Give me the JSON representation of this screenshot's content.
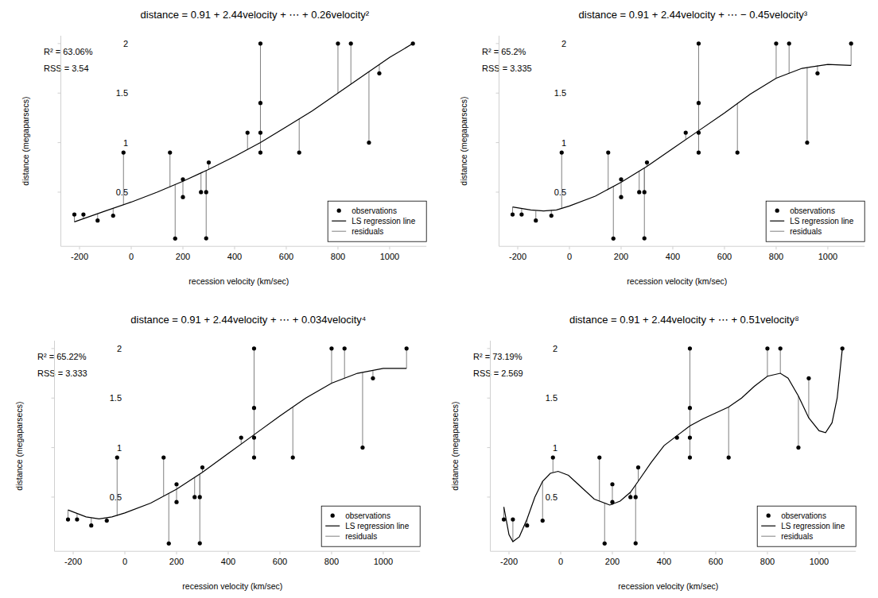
{
  "chart_data": [
    {
      "type": "scatter",
      "title": "distance = 0.91 + 2.44velocity + ⋯ + 0.26velocity²",
      "annotations": [
        "R² = 63.06%",
        "RSS = 3.54"
      ],
      "x_label": "recession velocity (km/sec)",
      "y_label": "distance (megaparsecs)",
      "xlim": [
        -272.4,
        1142.4
      ],
      "ylim": [
        -0.047,
        2.079
      ],
      "xticks": [
        -200,
        0,
        200,
        400,
        600,
        800,
        1000
      ],
      "yticks": [
        0.5,
        1,
        1.5,
        2
      ],
      "legend": "bottom-right",
      "series": [
        {
          "name": "observations",
          "type": "scatter",
          "marker": "circle",
          "color": "#000000",
          "x": [
            170,
            290,
            -130,
            -70,
            -185,
            -220,
            200,
            290,
            270,
            200,
            300,
            -30,
            650,
            150,
            500,
            920,
            450,
            500,
            500,
            960,
            500,
            850,
            800,
            1090
          ],
          "values": [
            0.032,
            0.034,
            0.214,
            0.263,
            0.275,
            0.275,
            0.45,
            0.5,
            0.5,
            0.63,
            0.8,
            0.9,
            0.9,
            0.9,
            0.9,
            1.0,
            1.1,
            1.1,
            1.4,
            1.7,
            2.0,
            2.0,
            2.0,
            2.0
          ]
        },
        {
          "name": "LS regression line",
          "type": "line",
          "color": "#000000",
          "x": [
            -220,
            -100,
            0,
            100,
            200,
            300,
            400,
            500,
            600,
            700,
            800,
            900,
            1000,
            1090
          ],
          "values": [
            0.2,
            0.31,
            0.4,
            0.5,
            0.61,
            0.73,
            0.86,
            1.0,
            1.16,
            1.32,
            1.5,
            1.68,
            1.86,
            2.0
          ]
        },
        {
          "name": "residuals",
          "type": "residual",
          "color": "#808080",
          "x": [
            170,
            290,
            -130,
            -70,
            -185,
            -220,
            200,
            290,
            270,
            200,
            300,
            -30,
            650,
            150,
            500,
            920,
            450,
            500,
            500,
            960,
            500,
            850,
            800,
            1090
          ],
          "values": [
            0.58,
            0.72,
            0.28,
            0.34,
            0.23,
            0.2,
            0.61,
            0.72,
            0.69,
            0.61,
            0.73,
            0.37,
            1.24,
            0.55,
            1.0,
            1.72,
            0.93,
            1.0,
            1.0,
            1.79,
            1.0,
            1.59,
            1.5,
            2.0
          ]
        }
      ]
    },
    {
      "type": "scatter",
      "title": "distance = 0.91 + 2.44velocity + ⋯ − 0.45velocity³",
      "annotations": [
        "R² = 65.2%",
        "RSS = 3.335"
      ],
      "x_label": "recession velocity (km/sec)",
      "y_label": "distance (megaparsecs)",
      "xlim": [
        -272.4,
        1142.4
      ],
      "ylim": [
        -0.047,
        2.079
      ],
      "xticks": [
        -200,
        0,
        200,
        400,
        600,
        800,
        1000
      ],
      "yticks": [
        0.5,
        1,
        1.5,
        2
      ],
      "legend": "bottom-right",
      "series": [
        {
          "name": "observations",
          "type": "scatter",
          "marker": "circle",
          "color": "#000000",
          "x": [
            170,
            290,
            -130,
            -70,
            -185,
            -220,
            200,
            290,
            270,
            200,
            300,
            -30,
            650,
            150,
            500,
            920,
            450,
            500,
            500,
            960,
            500,
            850,
            800,
            1090
          ],
          "values": [
            0.032,
            0.034,
            0.214,
            0.263,
            0.275,
            0.275,
            0.45,
            0.5,
            0.5,
            0.63,
            0.8,
            0.9,
            0.9,
            0.9,
            0.9,
            1.0,
            1.1,
            1.1,
            1.4,
            1.7,
            2.0,
            2.0,
            2.0,
            2.0
          ]
        },
        {
          "name": "LS regression line",
          "type": "line",
          "color": "#000000",
          "x": [
            -220,
            -150,
            -100,
            -50,
            0,
            100,
            200,
            300,
            400,
            500,
            600,
            700,
            800,
            900,
            1000,
            1090
          ],
          "values": [
            0.35,
            0.32,
            0.31,
            0.32,
            0.36,
            0.46,
            0.6,
            0.76,
            0.94,
            1.12,
            1.3,
            1.49,
            1.65,
            1.75,
            1.79,
            1.78
          ]
        },
        {
          "name": "residuals",
          "type": "residual",
          "color": "#808080",
          "x": [
            170,
            290,
            -130,
            -70,
            -185,
            -220,
            200,
            290,
            270,
            200,
            300,
            -30,
            650,
            150,
            500,
            920,
            450,
            500,
            500,
            960,
            500,
            850,
            800,
            1090
          ],
          "values": [
            0.56,
            0.74,
            0.31,
            0.32,
            0.33,
            0.35,
            0.6,
            0.74,
            0.71,
            0.6,
            0.76,
            0.34,
            1.4,
            0.53,
            1.12,
            1.76,
            1.03,
            1.12,
            1.12,
            1.78,
            1.12,
            1.7,
            1.65,
            1.78
          ]
        }
      ]
    },
    {
      "type": "scatter",
      "title": "distance = 0.91 + 2.44velocity + ⋯ + 0.034velocity⁴",
      "annotations": [
        "R² = 65.22%",
        "RSS = 3.333"
      ],
      "x_label": "recession velocity (km/sec)",
      "y_label": "distance (megaparsecs)",
      "xlim": [
        -272.4,
        1142.4
      ],
      "ylim": [
        -0.047,
        2.079
      ],
      "xticks": [
        -200,
        0,
        200,
        400,
        600,
        800,
        1000
      ],
      "yticks": [
        0.5,
        1,
        1.5,
        2
      ],
      "legend": "bottom-right",
      "series": [
        {
          "name": "observations",
          "type": "scatter",
          "marker": "circle",
          "color": "#000000",
          "x": [
            170,
            290,
            -130,
            -70,
            -185,
            -220,
            200,
            290,
            270,
            200,
            300,
            -30,
            650,
            150,
            500,
            920,
            450,
            500,
            500,
            960,
            500,
            850,
            800,
            1090
          ],
          "values": [
            0.032,
            0.034,
            0.214,
            0.263,
            0.275,
            0.275,
            0.45,
            0.5,
            0.5,
            0.63,
            0.8,
            0.9,
            0.9,
            0.9,
            0.9,
            1.0,
            1.1,
            1.1,
            1.4,
            1.7,
            2.0,
            2.0,
            2.0,
            2.0
          ]
        },
        {
          "name": "LS regression line",
          "type": "line",
          "color": "#000000",
          "x": [
            -220,
            -150,
            -100,
            -50,
            0,
            100,
            200,
            300,
            400,
            500,
            600,
            700,
            800,
            900,
            1000,
            1090
          ],
          "values": [
            0.37,
            0.3,
            0.28,
            0.3,
            0.34,
            0.44,
            0.58,
            0.75,
            0.94,
            1.13,
            1.32,
            1.5,
            1.65,
            1.75,
            1.8,
            1.8
          ]
        },
        {
          "name": "residuals",
          "type": "residual",
          "color": "#808080",
          "x": [
            170,
            290,
            -130,
            -70,
            -185,
            -220,
            200,
            290,
            270,
            200,
            300,
            -30,
            650,
            150,
            500,
            920,
            450,
            500,
            500,
            960,
            500,
            850,
            800,
            1090
          ],
          "values": [
            0.54,
            0.73,
            0.29,
            0.29,
            0.33,
            0.37,
            0.58,
            0.73,
            0.7,
            0.58,
            0.75,
            0.31,
            1.41,
            0.51,
            1.13,
            1.76,
            1.04,
            1.13,
            1.13,
            1.78,
            1.13,
            1.7,
            1.65,
            1.8
          ]
        }
      ]
    },
    {
      "type": "scatter",
      "title": "distance = 0.91 + 2.44velocity + ⋯ + 0.51velocity⁸",
      "annotations": [
        "R² = 73.19%",
        "RSS = 2.569"
      ],
      "x_label": "recession velocity (km/sec)",
      "y_label": "distance (megaparsecs)",
      "xlim": [
        -272.4,
        1142.4
      ],
      "ylim": [
        -0.047,
        2.079
      ],
      "xticks": [
        -200,
        0,
        200,
        400,
        600,
        800,
        1000
      ],
      "yticks": [
        0.5,
        1,
        1.5,
        2
      ],
      "legend": "bottom-right",
      "series": [
        {
          "name": "observations",
          "type": "scatter",
          "marker": "circle",
          "color": "#000000",
          "x": [
            170,
            290,
            -130,
            -70,
            -185,
            -220,
            200,
            290,
            270,
            200,
            300,
            -30,
            650,
            150,
            500,
            920,
            450,
            500,
            500,
            960,
            500,
            850,
            800,
            1090
          ],
          "values": [
            0.032,
            0.034,
            0.214,
            0.263,
            0.275,
            0.275,
            0.45,
            0.5,
            0.5,
            0.63,
            0.8,
            0.9,
            0.9,
            0.9,
            0.9,
            1.0,
            1.1,
            1.1,
            1.4,
            1.7,
            2.0,
            2.0,
            2.0,
            2.0
          ]
        },
        {
          "name": "LS regression line",
          "type": "line",
          "color": "#000000",
          "x": [
            -220,
            -200,
            -185,
            -160,
            -130,
            -100,
            -70,
            -40,
            -10,
            30,
            80,
            130,
            190,
            230,
            270,
            300,
            350,
            400,
            450,
            500,
            550,
            600,
            650,
            700,
            750,
            800,
            850,
            880,
            920,
            960,
            1000,
            1025,
            1050,
            1070,
            1090
          ],
          "values": [
            0.4,
            0.12,
            0.05,
            0.1,
            0.28,
            0.5,
            0.66,
            0.74,
            0.76,
            0.72,
            0.6,
            0.48,
            0.42,
            0.46,
            0.55,
            0.66,
            0.85,
            1.02,
            1.12,
            1.22,
            1.29,
            1.35,
            1.41,
            1.5,
            1.62,
            1.72,
            1.75,
            1.7,
            1.52,
            1.3,
            1.17,
            1.15,
            1.25,
            1.5,
            2.0
          ]
        },
        {
          "name": "residuals",
          "type": "residual",
          "color": "#808080",
          "x": [
            170,
            290,
            -130,
            -70,
            -185,
            -220,
            200,
            290,
            270,
            200,
            300,
            -30,
            650,
            150,
            500,
            920,
            450,
            500,
            500,
            960,
            500,
            850,
            800,
            1090
          ],
          "values": [
            0.44,
            0.62,
            0.28,
            0.66,
            0.05,
            0.4,
            0.42,
            0.62,
            0.55,
            0.42,
            0.66,
            0.75,
            1.41,
            0.46,
            1.22,
            1.52,
            1.12,
            1.22,
            1.22,
            1.3,
            1.22,
            1.75,
            1.72,
            2.0
          ]
        }
      ]
    }
  ]
}
